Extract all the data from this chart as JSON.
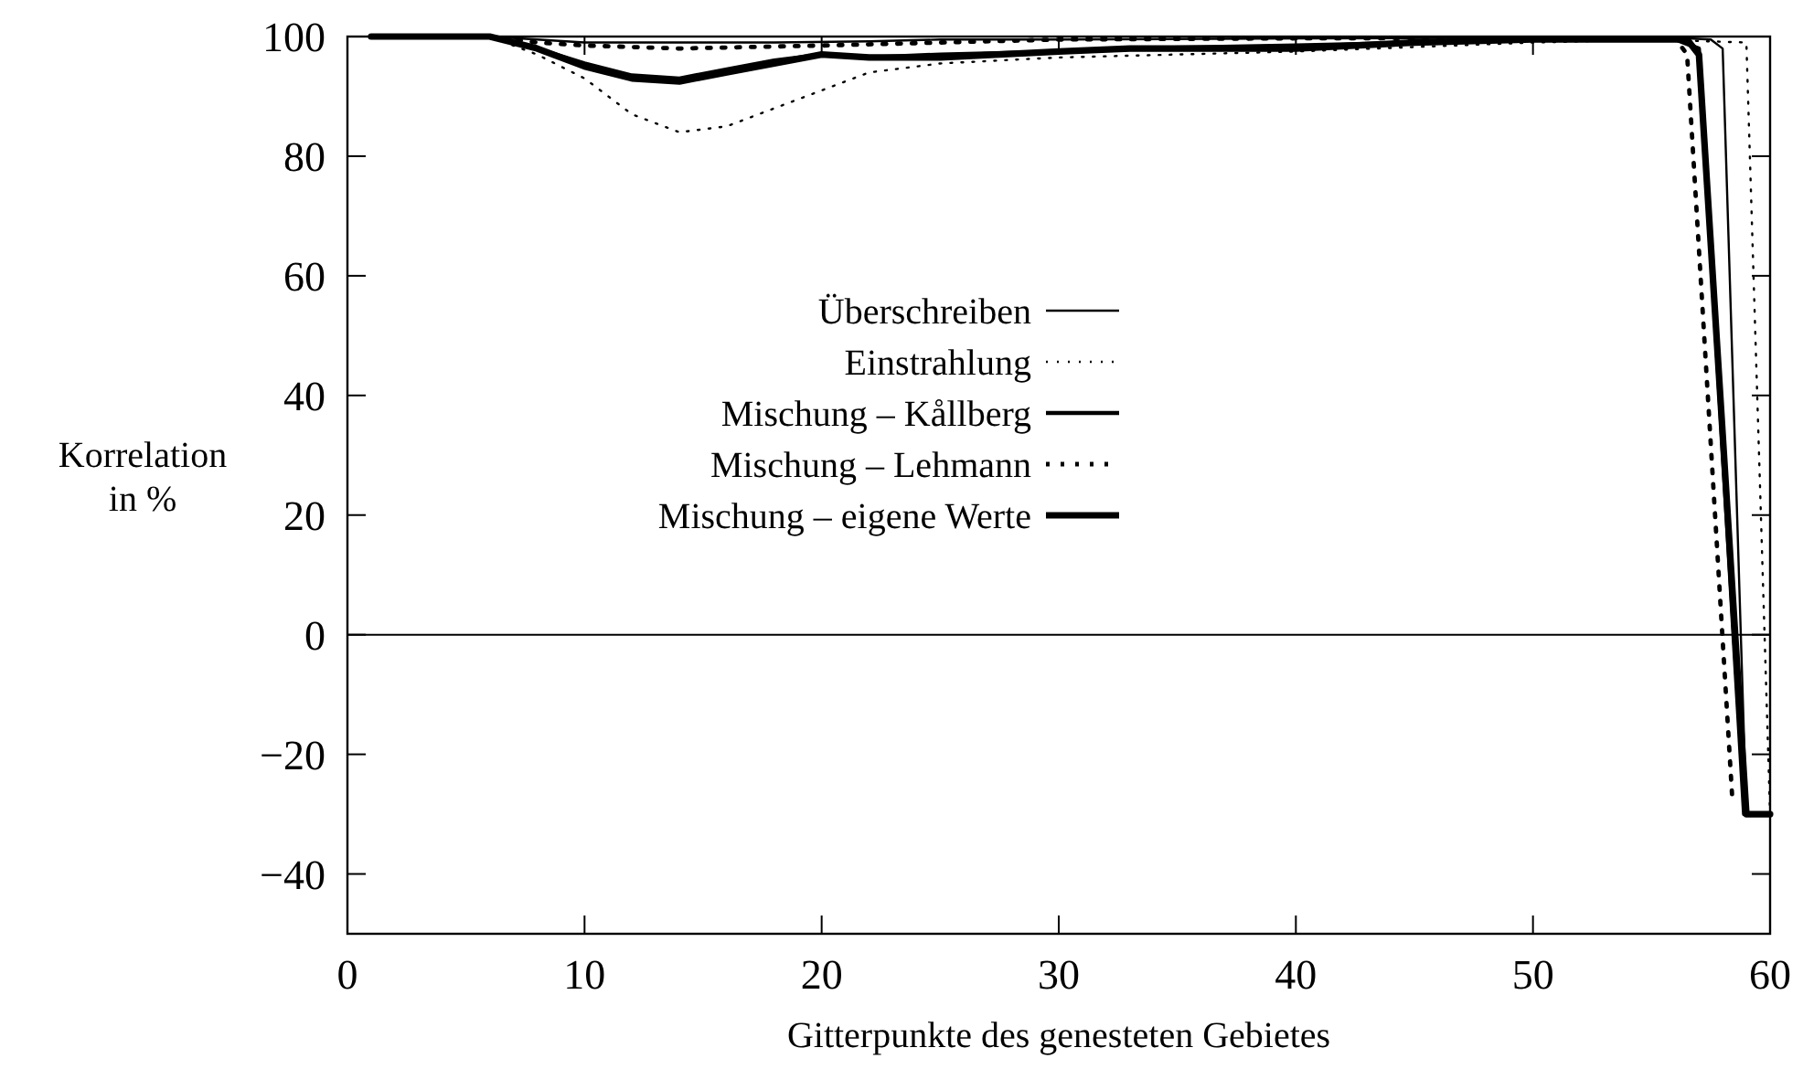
{
  "chart_data": {
    "type": "line",
    "xlabel": "Gitterpunkte des genesteten Gebietes",
    "ylabel": "Korrelation in %",
    "xlim": [
      0,
      60
    ],
    "xticks": [
      0,
      10,
      20,
      30,
      40,
      50,
      60
    ],
    "ylim": [
      -50,
      100
    ],
    "yticks": [
      {
        "value": -40,
        "label": "−40"
      },
      {
        "value": -20,
        "label": "−20"
      },
      0,
      20,
      40,
      60,
      80,
      100
    ],
    "grid": false,
    "legend": "left",
    "ref_lines": [
      {
        "axis": "y",
        "value": 0,
        "color": "#000000",
        "line_style": "solid"
      }
    ],
    "series": [
      {
        "name": "Überschreiben",
        "color": "#000000",
        "line_style": "solid",
        "x": [
          1,
          6,
          8,
          10,
          12,
          14,
          18,
          22,
          25,
          30,
          40,
          50,
          56,
          57.5,
          58,
          59,
          60
        ],
        "values": [
          100,
          100,
          99.5,
          99,
          99,
          99,
          99,
          99.2,
          99.5,
          99.5,
          99.7,
          99.8,
          99.8,
          99.5,
          98,
          -30,
          -30
        ]
      },
      {
        "name": "Einstrahlung",
        "color": "#000000",
        "line_style": "dotted",
        "x": [
          1,
          6,
          8,
          10,
          12,
          14,
          16,
          18,
          20,
          22,
          25,
          30,
          40,
          50,
          55,
          59,
          60
        ],
        "values": [
          100,
          100,
          97,
          93,
          87,
          84,
          85,
          88,
          91,
          94,
          95.5,
          96.5,
          97.5,
          99,
          99.5,
          99,
          -30
        ]
      },
      {
        "name": "Mischung – Kållberg",
        "color": "#000000",
        "line_style": "solid",
        "x": [
          1,
          6,
          8,
          10,
          12,
          14,
          16,
          18,
          20,
          22,
          25,
          30,
          33,
          40,
          45,
          50,
          56,
          57,
          58.9,
          60
        ],
        "values": [
          100,
          100,
          98,
          95.5,
          93.5,
          93,
          94.5,
          96,
          97,
          96.5,
          97,
          97.5,
          98,
          98.5,
          99,
          99.5,
          99.5,
          98,
          -30,
          -30
        ]
      },
      {
        "name": "Mischung – Lehmann",
        "color": "#000000",
        "line_style": "dotted",
        "x": [
          1,
          6,
          8,
          10,
          14,
          20,
          30,
          40,
          50,
          56,
          56.5,
          58.4
        ],
        "values": [
          100,
          100,
          99,
          98.5,
          98,
          98.5,
          99.5,
          99.7,
          99.8,
          99.7,
          97,
          -27
        ]
      },
      {
        "name": "Mischung – eigene Werte",
        "color": "#000000",
        "line_style": "solid",
        "x": [
          1,
          6,
          8,
          10,
          12,
          14,
          16,
          18,
          20,
          22,
          25,
          30,
          33,
          40,
          45,
          50,
          56.5,
          57,
          59,
          60
        ],
        "values": [
          100,
          100,
          98,
          95,
          93,
          92.5,
          94,
          95.5,
          97,
          96.5,
          96.5,
          97.5,
          98,
          98,
          99,
          99.5,
          99.5,
          97,
          -30,
          -30
        ]
      }
    ]
  }
}
